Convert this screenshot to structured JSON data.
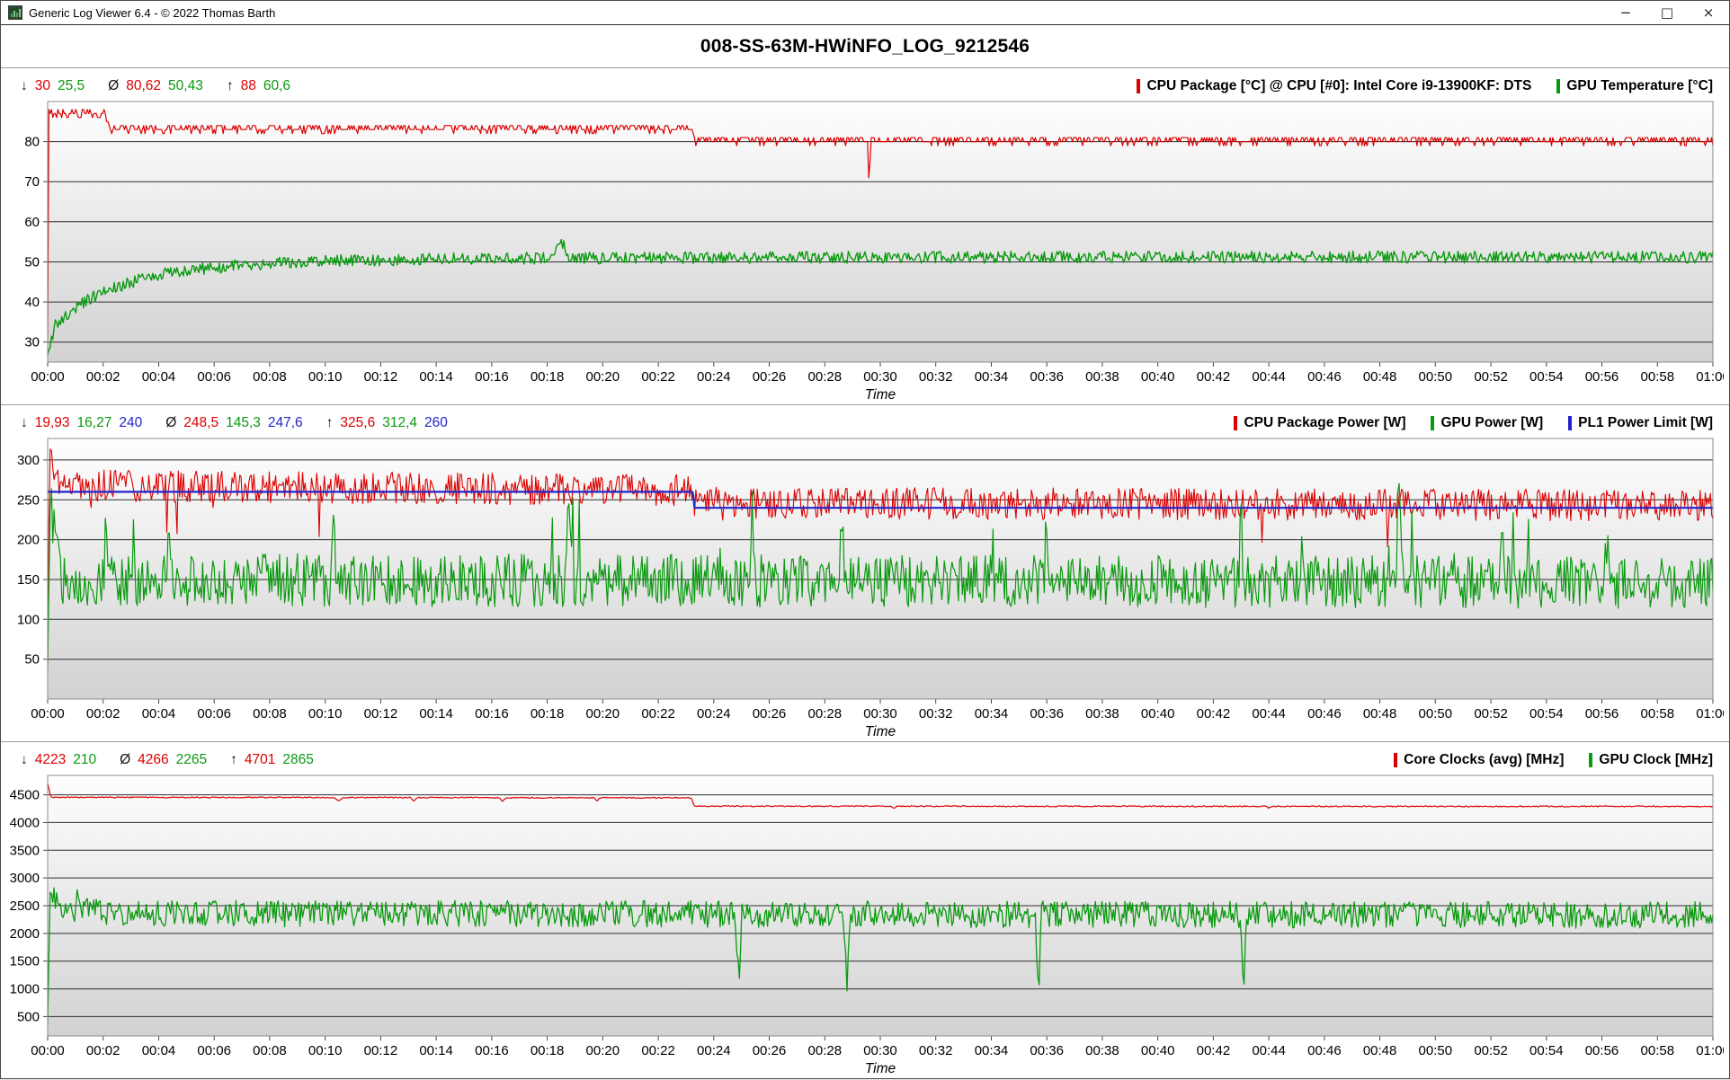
{
  "window": {
    "title": "Generic Log Viewer 6.4 - © 2022 Thomas Barth",
    "controls": {
      "minimize": "−",
      "maximize": "□",
      "close": "×"
    }
  },
  "header": {
    "title": "008-SS-63M-HWiNFO_LOG_9212546"
  },
  "colors": {
    "red": "#dc0000",
    "green": "#0a9a0f",
    "blue": "#2323cc",
    "axis": "#000000",
    "plot_border": "#8c8c8c"
  },
  "time_axis": {
    "label": "Time",
    "ticks": [
      "00:00",
      "00:02",
      "00:04",
      "00:06",
      "00:08",
      "00:10",
      "00:12",
      "00:14",
      "00:16",
      "00:18",
      "00:20",
      "00:22",
      "00:24",
      "00:26",
      "00:28",
      "00:30",
      "00:32",
      "00:34",
      "00:36",
      "00:38",
      "00:40",
      "00:42",
      "00:44",
      "00:46",
      "00:48",
      "00:50",
      "00:52",
      "00:54",
      "00:56",
      "00:58",
      "01:00"
    ]
  },
  "charts": [
    {
      "stats": {
        "min_symbol": "↓",
        "avg_symbol": "Ø",
        "max_symbol": "↑",
        "min": [
          {
            "text": "30",
            "color": "red"
          },
          {
            "text": "25,5",
            "color": "green"
          }
        ],
        "avg": [
          {
            "text": "80,62",
            "color": "red"
          },
          {
            "text": "50,43",
            "color": "green"
          }
        ],
        "max": [
          {
            "text": "88",
            "color": "red"
          },
          {
            "text": "60,6",
            "color": "green"
          }
        ]
      },
      "legend": [
        {
          "label": "CPU Package [°C] @ CPU [#0]: Intel Core i9-13900KF: DTS",
          "color": "red"
        },
        {
          "label": "GPU Temperature [°C]",
          "color": "green"
        }
      ],
      "chart_data": {
        "type": "line",
        "name": "temperature",
        "xlabel": "Time",
        "x_unit": "minutes",
        "x_range": [
          0,
          60
        ],
        "x_tick_interval_min": 2,
        "ylim": [
          25,
          90
        ],
        "yticks": [
          30,
          40,
          50,
          60,
          70,
          80
        ],
        "series": [
          {
            "key": "cpu-package-temp",
            "name": "CPU Package [°C]",
            "color": "red",
            "width": 1.2,
            "stat_min": 30,
            "stat_avg": 80.62,
            "stat_max": 88,
            "anchors": [
              [
                0,
                30
              ],
              [
                0.04,
                87
              ],
              [
                2.1,
                87
              ],
              [
                2.2,
                83.3
              ],
              [
                23.2,
                83.3
              ],
              [
                23.3,
                80.3
              ],
              [
                60,
                80.3
              ]
            ],
            "noise": 1.0,
            "quantize": 1,
            "max_clamp": 88,
            "pulses": [
              [
                29.6,
                -11,
                0.07
              ]
            ]
          },
          {
            "key": "gpu-temperature",
            "name": "GPU Temperature [°C]",
            "color": "green",
            "width": 1.4,
            "stat_min": 25.5,
            "stat_avg": 50.43,
            "stat_max": 60.6,
            "anchors": [
              [
                0,
                25.5
              ],
              [
                0.25,
                34
              ],
              [
                0.7,
                37
              ],
              [
                1.2,
                39.5
              ],
              [
                2,
                42.5
              ],
              [
                3,
                45
              ],
              [
                4,
                46.8
              ],
              [
                5,
                47.8
              ],
              [
                6,
                48.6
              ],
              [
                8,
                49.6
              ],
              [
                10,
                50.2
              ],
              [
                14,
                50.8
              ],
              [
                20,
                51
              ],
              [
                30,
                51.2
              ],
              [
                60,
                51.2
              ]
            ],
            "noise": 1.5,
            "max_clamp": 60.6,
            "pulses": [
              [
                18.5,
                4.5,
                0.3
              ]
            ]
          }
        ]
      }
    },
    {
      "stats": {
        "min_symbol": "↓",
        "avg_symbol": "Ø",
        "max_symbol": "↑",
        "min": [
          {
            "text": "19,93",
            "color": "red"
          },
          {
            "text": "16,27",
            "color": "green"
          },
          {
            "text": "240",
            "color": "blue"
          }
        ],
        "avg": [
          {
            "text": "248,5",
            "color": "red"
          },
          {
            "text": "145,3",
            "color": "green"
          },
          {
            "text": "247,6",
            "color": "blue"
          }
        ],
        "max": [
          {
            "text": "325,6",
            "color": "red"
          },
          {
            "text": "312,4",
            "color": "green"
          },
          {
            "text": "260",
            "color": "blue"
          }
        ]
      },
      "legend": [
        {
          "label": "CPU Package Power [W]",
          "color": "red"
        },
        {
          "label": "GPU Power [W]",
          "color": "green"
        },
        {
          "label": "PL1 Power Limit [W]",
          "color": "blue"
        }
      ],
      "chart_data": {
        "type": "line",
        "name": "power",
        "xlabel": "Time",
        "x_unit": "minutes",
        "x_range": [
          0,
          60
        ],
        "x_tick_interval_min": 2,
        "ylim": [
          0,
          327
        ],
        "yticks": [
          50,
          100,
          150,
          200,
          250,
          300
        ],
        "series": [
          {
            "key": "cpu-package-power",
            "name": "CPU Package Power [W]",
            "color": "red",
            "width": 1.1,
            "stat_min": 19.93,
            "stat_avg": 248.5,
            "stat_max": 325.6,
            "anchors": [
              [
                0,
                19.93
              ],
              [
                0.07,
                322
              ],
              [
                0.2,
                290
              ],
              [
                0.5,
                268
              ],
              [
                23.2,
                262
              ],
              [
                23.3,
                246
              ],
              [
                60,
                243
              ]
            ],
            "noise": 20,
            "max_clamp": 325.6,
            "random_spikes": {
              "prob": 0.012,
              "amp": -45
            }
          },
          {
            "key": "gpu-power",
            "name": "GPU Power [W]",
            "color": "green",
            "width": 1.2,
            "stat_min": 16.27,
            "stat_avg": 145.3,
            "stat_max": 312.4,
            "anchors": [
              [
                0,
                16.27
              ],
              [
                0.1,
                248
              ],
              [
                0.45,
                150
              ],
              [
                60,
                146
              ]
            ],
            "noise": 33,
            "min_clamp": 16.27,
            "max_clamp": 314,
            "random_spikes": {
              "prob": 0.013,
              "amp": 85
            },
            "pulses": [
              [
                2.1,
                85,
                0.07
              ],
              [
                4.4,
                80,
                0.1
              ],
              [
                10.3,
                85,
                0.1
              ],
              [
                18.8,
                100,
                0.16
              ],
              [
                25.4,
                95,
                0.1
              ],
              [
                28.6,
                95,
                0.1
              ],
              [
                36.0,
                90,
                0.1
              ],
              [
                43.0,
                88,
                0.1
              ],
              [
                48.7,
                165,
                0.12
              ],
              [
                52.4,
                82,
                0.1
              ],
              [
                56.2,
                80,
                0.1
              ]
            ]
          },
          {
            "key": "pl1-power-limit",
            "name": "PL1 Power Limit [W]",
            "color": "blue",
            "width": 2.2,
            "stat_min": 240,
            "stat_avg": 247.6,
            "stat_max": 260,
            "anchors": [
              [
                0,
                260
              ],
              [
                23.25,
                260
              ],
              [
                23.3,
                240
              ],
              [
                60,
                240
              ]
            ],
            "noise": 0
          }
        ]
      }
    },
    {
      "stats": {
        "min_symbol": "↓",
        "avg_symbol": "Ø",
        "max_symbol": "↑",
        "min": [
          {
            "text": "4223",
            "color": "red"
          },
          {
            "text": "210",
            "color": "green"
          }
        ],
        "avg": [
          {
            "text": "4266",
            "color": "red"
          },
          {
            "text": "2265",
            "color": "green"
          }
        ],
        "max": [
          {
            "text": "4701",
            "color": "red"
          },
          {
            "text": "2865",
            "color": "green"
          }
        ]
      },
      "legend": [
        {
          "label": "Core Clocks (avg) [MHz]",
          "color": "red"
        },
        {
          "label": "GPU Clock [MHz]",
          "color": "green"
        }
      ],
      "chart_data": {
        "type": "line",
        "name": "clocks",
        "xlabel": "Time",
        "x_unit": "minutes",
        "x_range": [
          0,
          60
        ],
        "x_tick_interval_min": 2,
        "ylim": [
          150,
          4850
        ],
        "yticks": [
          500,
          1000,
          1500,
          2000,
          2500,
          3000,
          3500,
          4000,
          4500
        ],
        "series": [
          {
            "key": "core-clocks-avg",
            "name": "Core Clocks (avg) [MHz]",
            "color": "red",
            "width": 1.2,
            "stat_min": 4223,
            "stat_avg": 4266,
            "stat_max": 4701,
            "anchors": [
              [
                0,
                4701
              ],
              [
                0.12,
                4455
              ],
              [
                23.2,
                4445
              ],
              [
                23.3,
                4295
              ],
              [
                60,
                4290
              ]
            ],
            "noise": 10,
            "max_clamp": 4701,
            "pulses": [
              [
                10.5,
                -70,
                0.15
              ],
              [
                13.2,
                -60,
                0.12
              ],
              [
                16.4,
                -65,
                0.12
              ],
              [
                19.8,
                -60,
                0.12
              ],
              [
                30.5,
                -40,
                0.1
              ],
              [
                44.0,
                -35,
                0.1
              ]
            ]
          },
          {
            "key": "gpu-clock",
            "name": "GPU Clock [MHz]",
            "color": "green",
            "width": 1.3,
            "stat_min": 210,
            "stat_avg": 2265,
            "stat_max": 2865,
            "anchors": [
              [
                0,
                210
              ],
              [
                0.1,
                2865
              ],
              [
                0.5,
                2450
              ],
              [
                2,
                2360
              ],
              [
                60,
                2330
              ]
            ],
            "noise": 240,
            "max_clamp": 2865,
            "random_spikes": {
              "prob": 0.008,
              "amp": 280
            },
            "pulses": [
              [
                24.9,
                -1250,
                0.12
              ],
              [
                28.8,
                -1200,
                0.12
              ],
              [
                35.7,
                -1300,
                0.12
              ],
              [
                43.1,
                -1250,
                0.12
              ]
            ]
          }
        ]
      }
    }
  ]
}
